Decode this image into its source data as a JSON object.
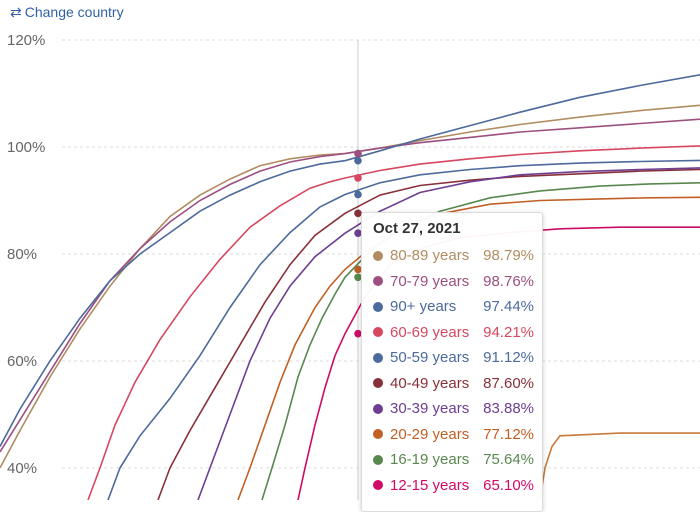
{
  "header": {
    "change_country_label": "Change country",
    "change_country_icon": "swap-arrows-icon"
  },
  "chart_data": {
    "type": "line",
    "title": "",
    "xlabel": "",
    "ylabel": "",
    "y_ticks": [
      "40%",
      "60%",
      "80%",
      "100%",
      "120%"
    ],
    "y_tick_values": [
      40,
      60,
      80,
      100,
      120
    ],
    "ylim": [
      34,
      123
    ],
    "grid": true,
    "hover_date": "Oct 27, 2021",
    "series": [
      {
        "name": "80-89 years",
        "color": "#b08d60",
        "value_label": "98.79%",
        "value": 98.79,
        "curve": [
          [
            0,
            40
          ],
          [
            20,
            47
          ],
          [
            50,
            57
          ],
          [
            80,
            66
          ],
          [
            110,
            74
          ],
          [
            140,
            81
          ],
          [
            170,
            87
          ],
          [
            200,
            91
          ],
          [
            230,
            94
          ],
          [
            260,
            96.5
          ],
          [
            290,
            97.8
          ],
          [
            320,
            98.5
          ],
          [
            345,
            98.79
          ],
          [
            380,
            99.8
          ],
          [
            420,
            101.2
          ],
          [
            470,
            102.8
          ],
          [
            520,
            104.2
          ],
          [
            580,
            105.6
          ],
          [
            640,
            106.8
          ],
          [
            700,
            107.8
          ]
        ]
      },
      {
        "name": "70-79 years",
        "color": "#9c4f80",
        "value_label": "98.76%",
        "value": 98.76,
        "curve": [
          [
            0,
            43
          ],
          [
            20,
            49
          ],
          [
            50,
            58
          ],
          [
            80,
            67
          ],
          [
            110,
            75
          ],
          [
            140,
            81
          ],
          [
            170,
            86
          ],
          [
            200,
            90
          ],
          [
            230,
            93
          ],
          [
            260,
            95.5
          ],
          [
            290,
            97.2
          ],
          [
            320,
            98.2
          ],
          [
            345,
            98.76
          ],
          [
            380,
            99.8
          ],
          [
            420,
            100.8
          ],
          [
            470,
            101.8
          ],
          [
            520,
            102.8
          ],
          [
            580,
            103.6
          ],
          [
            640,
            104.4
          ],
          [
            700,
            105.2
          ]
        ]
      },
      {
        "name": "90+ years",
        "color": "#4c6a9c",
        "value_label": "97.44%",
        "value": 97.44,
        "curve": [
          [
            0,
            44
          ],
          [
            20,
            51
          ],
          [
            50,
            60
          ],
          [
            80,
            68
          ],
          [
            110,
            75
          ],
          [
            140,
            80
          ],
          [
            170,
            84
          ],
          [
            200,
            88
          ],
          [
            230,
            91
          ],
          [
            260,
            93.5
          ],
          [
            290,
            95.5
          ],
          [
            320,
            96.8
          ],
          [
            345,
            97.44
          ],
          [
            380,
            99.3
          ],
          [
            420,
            101.5
          ],
          [
            470,
            104
          ],
          [
            520,
            106.5
          ],
          [
            580,
            109.3
          ],
          [
            640,
            111.5
          ],
          [
            700,
            113.5
          ]
        ]
      },
      {
        "name": "60-69 years",
        "color": "#d6485f",
        "value_label": "94.21%",
        "value": 94.21,
        "curve": [
          [
            88,
            34
          ],
          [
            100,
            40
          ],
          [
            115,
            48
          ],
          [
            135,
            56
          ],
          [
            160,
            64
          ],
          [
            190,
            72
          ],
          [
            220,
            79
          ],
          [
            250,
            85
          ],
          [
            280,
            89
          ],
          [
            310,
            92.3
          ],
          [
            330,
            93.5
          ],
          [
            345,
            94.21
          ],
          [
            380,
            95.6
          ],
          [
            420,
            96.8
          ],
          [
            470,
            97.8
          ],
          [
            520,
            98.6
          ],
          [
            580,
            99.3
          ],
          [
            640,
            99.8
          ],
          [
            700,
            100.2
          ]
        ]
      },
      {
        "name": "50-59 years",
        "color": "#4c6a9c",
        "value_label": "91.12%",
        "value": 91.12,
        "curve": [
          [
            108,
            34
          ],
          [
            120,
            40
          ],
          [
            140,
            46
          ],
          [
            170,
            53
          ],
          [
            200,
            61
          ],
          [
            230,
            70
          ],
          [
            260,
            78
          ],
          [
            290,
            84
          ],
          [
            320,
            88.8
          ],
          [
            345,
            91.12
          ],
          [
            380,
            93.3
          ],
          [
            420,
            94.8
          ],
          [
            470,
            95.8
          ],
          [
            520,
            96.5
          ],
          [
            580,
            97
          ],
          [
            640,
            97.3
          ],
          [
            700,
            97.5
          ]
        ]
      },
      {
        "name": "40-49 years",
        "color": "#883039",
        "value_label": "87.60%",
        "value": 87.6,
        "curve": [
          [
            158,
            34
          ],
          [
            170,
            40
          ],
          [
            190,
            47
          ],
          [
            215,
            55
          ],
          [
            240,
            63
          ],
          [
            265,
            71
          ],
          [
            290,
            78
          ],
          [
            315,
            83.5
          ],
          [
            345,
            87.6
          ],
          [
            380,
            91
          ],
          [
            420,
            92.8
          ],
          [
            470,
            93.8
          ],
          [
            520,
            94.5
          ],
          [
            580,
            95
          ],
          [
            640,
            95.5
          ],
          [
            700,
            95.8
          ]
        ]
      },
      {
        "name": "30-39 years",
        "color": "#6d3e91",
        "value_label": "83.88%",
        "value": 83.88,
        "curve": [
          [
            198,
            34
          ],
          [
            210,
            40
          ],
          [
            230,
            50
          ],
          [
            250,
            60
          ],
          [
            270,
            68
          ],
          [
            290,
            74
          ],
          [
            315,
            79.5
          ],
          [
            345,
            83.88
          ],
          [
            380,
            88
          ],
          [
            420,
            91.5
          ],
          [
            470,
            93.5
          ],
          [
            520,
            94.8
          ],
          [
            580,
            95.4
          ],
          [
            640,
            95.8
          ],
          [
            700,
            96.1
          ]
        ]
      },
      {
        "name": "20-29 years",
        "color": "#c15f25",
        "value_label": "77.12%",
        "value": 77.12,
        "curve": [
          [
            238,
            34
          ],
          [
            250,
            40
          ],
          [
            265,
            48
          ],
          [
            280,
            56
          ],
          [
            295,
            63
          ],
          [
            315,
            70
          ],
          [
            330,
            74
          ],
          [
            345,
            77.12
          ],
          [
            370,
            81
          ],
          [
            400,
            84.5
          ],
          [
            440,
            87.5
          ],
          [
            490,
            89.3
          ],
          [
            540,
            90
          ],
          [
            600,
            90.3
          ],
          [
            650,
            90.5
          ],
          [
            700,
            90.6
          ]
        ]
      },
      {
        "name": "16-19 years",
        "color": "#58884f",
        "value_label": "75.64%",
        "value": 75.64,
        "curve": [
          [
            262,
            34
          ],
          [
            272,
            40
          ],
          [
            285,
            48
          ],
          [
            298,
            57
          ],
          [
            310,
            63
          ],
          [
            322,
            68
          ],
          [
            335,
            72.5
          ],
          [
            345,
            75.64
          ],
          [
            370,
            80.5
          ],
          [
            400,
            84.5
          ],
          [
            440,
            88
          ],
          [
            490,
            90.5
          ],
          [
            540,
            91.8
          ],
          [
            600,
            92.7
          ],
          [
            650,
            93.1
          ],
          [
            700,
            93.3
          ]
        ]
      },
      {
        "name": "12-15 years",
        "color": "#cf0a66",
        "value_label": "65.10%",
        "value": 65.1,
        "curve": [
          [
            298,
            34
          ],
          [
            305,
            40
          ],
          [
            315,
            48
          ],
          [
            325,
            55
          ],
          [
            335,
            61
          ],
          [
            345,
            65.1
          ],
          [
            365,
            72
          ],
          [
            390,
            78
          ],
          [
            420,
            81
          ],
          [
            460,
            83
          ],
          [
            510,
            84
          ],
          [
            560,
            84.7
          ],
          [
            620,
            85
          ],
          [
            700,
            85
          ]
        ]
      }
    ],
    "extra_line": {
      "color": "#c9793a",
      "curve": [
        [
          540,
          34
        ],
        [
          545,
          40
        ],
        [
          552,
          44
        ],
        [
          560,
          46
        ],
        [
          620,
          46.5
        ],
        [
          700,
          46.5
        ]
      ]
    }
  }
}
